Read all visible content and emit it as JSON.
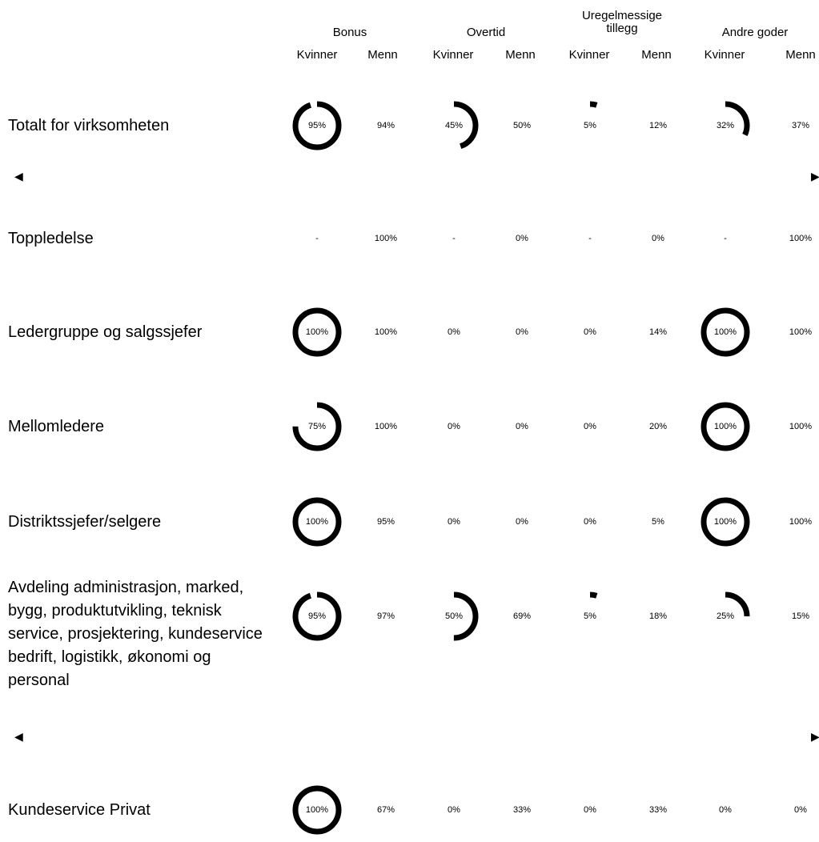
{
  "groups": [
    {
      "title": "Bonus"
    },
    {
      "title": "Overtid"
    },
    {
      "title": "Uregelmessige tillegg"
    },
    {
      "title": "Andre goder"
    }
  ],
  "sub": {
    "women": "Kvinner",
    "men": "Menn"
  },
  "nav": {
    "prev": "◀",
    "next": "▶"
  },
  "rows": [
    {
      "label": "Totalt for virksomheten",
      "cells": [
        {
          "v": "95%",
          "p": 95
        },
        {
          "v": "94%"
        },
        {
          "v": "45%",
          "p": 45
        },
        {
          "v": "50%"
        },
        {
          "v": "5%",
          "p": 5
        },
        {
          "v": "12%"
        },
        {
          "v": "32%",
          "p": 32
        },
        {
          "v": "37%"
        }
      ]
    },
    {
      "label": "Toppledelse",
      "cells": [
        {
          "v": "-"
        },
        {
          "v": "100%"
        },
        {
          "v": "-"
        },
        {
          "v": "0%"
        },
        {
          "v": "-"
        },
        {
          "v": "0%"
        },
        {
          "v": "-"
        },
        {
          "v": "100%"
        }
      ]
    },
    {
      "label": "Ledergruppe og salgssjefer",
      "cells": [
        {
          "v": "100%",
          "p": 100
        },
        {
          "v": "100%"
        },
        {
          "v": "0%"
        },
        {
          "v": "0%"
        },
        {
          "v": "0%"
        },
        {
          "v": "14%"
        },
        {
          "v": "100%",
          "p": 100
        },
        {
          "v": "100%"
        }
      ]
    },
    {
      "label": "Mellomledere",
      "cells": [
        {
          "v": "75%",
          "p": 75
        },
        {
          "v": "100%"
        },
        {
          "v": "0%"
        },
        {
          "v": "0%"
        },
        {
          "v": "0%"
        },
        {
          "v": "20%"
        },
        {
          "v": "100%",
          "p": 100
        },
        {
          "v": "100%"
        }
      ]
    },
    {
      "label": "Distriktssjefer/selgere",
      "cells": [
        {
          "v": "100%",
          "p": 100
        },
        {
          "v": "95%"
        },
        {
          "v": "0%"
        },
        {
          "v": "0%"
        },
        {
          "v": "0%"
        },
        {
          "v": "5%"
        },
        {
          "v": "100%",
          "p": 100
        },
        {
          "v": "100%"
        }
      ]
    },
    {
      "label": "Avdeling administrasjon, marked, bygg, produktutvikling, teknisk service, prosjektering, kundeservice bedrift, logistikk, økonomi og personal",
      "cells": [
        {
          "v": "95%",
          "p": 95
        },
        {
          "v": "97%"
        },
        {
          "v": "50%",
          "p": 50
        },
        {
          "v": "69%"
        },
        {
          "v": "5%",
          "p": 5
        },
        {
          "v": "18%"
        },
        {
          "v": "25%",
          "p": 25
        },
        {
          "v": "15%"
        }
      ]
    },
    {
      "label": "Kundeservice Privat",
      "cells": [
        {
          "v": "100%",
          "p": 100
        },
        {
          "v": "67%"
        },
        {
          "v": "0%"
        },
        {
          "v": "33%"
        },
        {
          "v": "0%"
        },
        {
          "v": "33%"
        },
        {
          "v": "0%"
        },
        {
          "v": "0%"
        }
      ]
    }
  ],
  "colors": {
    "ring": "#000000",
    "text": "#000000",
    "background": "#ffffff"
  }
}
